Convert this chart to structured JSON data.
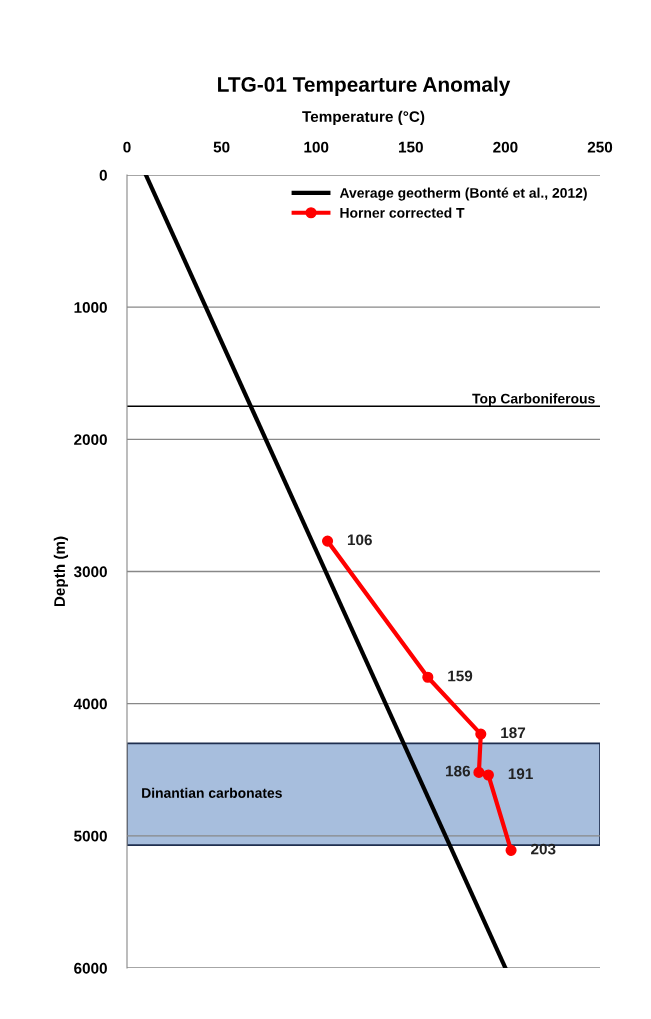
{
  "chart_data": {
    "type": "line",
    "title": "LTG-01 Tempearture Anomaly",
    "xlabel": "Temperature (°C)",
    "ylabel": "Depth (m)",
    "xlim": [
      0,
      250
    ],
    "xticks": [
      0,
      50,
      100,
      150,
      200,
      250
    ],
    "ylim": [
      6000,
      0
    ],
    "yticks": [
      0,
      1000,
      2000,
      3000,
      4000,
      5000,
      6000
    ],
    "grid": "y",
    "legend": "top right",
    "orientation": "horizontal",
    "series": [
      {
        "name": "Average geotherm (Bonté et al., 2012)",
        "color": "#000000",
        "marker": "none",
        "x": [
          0,
          6000
        ],
        "values": [
          10,
          200
        ]
      },
      {
        "name": "Horner corrected T",
        "color": "#ff0000",
        "marker": "circle",
        "x": [
          2770,
          3800,
          4230,
          4520,
          4540,
          5110
        ],
        "values": [
          106,
          159,
          187,
          186,
          191,
          203
        ],
        "value_labels": [
          "106",
          "159",
          "187",
          "186",
          "191",
          "203"
        ]
      }
    ],
    "ref_lines": [
      {
        "axis": "y",
        "value": 1750,
        "label": "Top Carboniferous",
        "color": "#000000"
      }
    ],
    "bands": [
      {
        "axis": "y",
        "from": 4300,
        "to": 5070,
        "label": "Dinantian carbonates",
        "color": "#a7bedd"
      }
    ]
  }
}
